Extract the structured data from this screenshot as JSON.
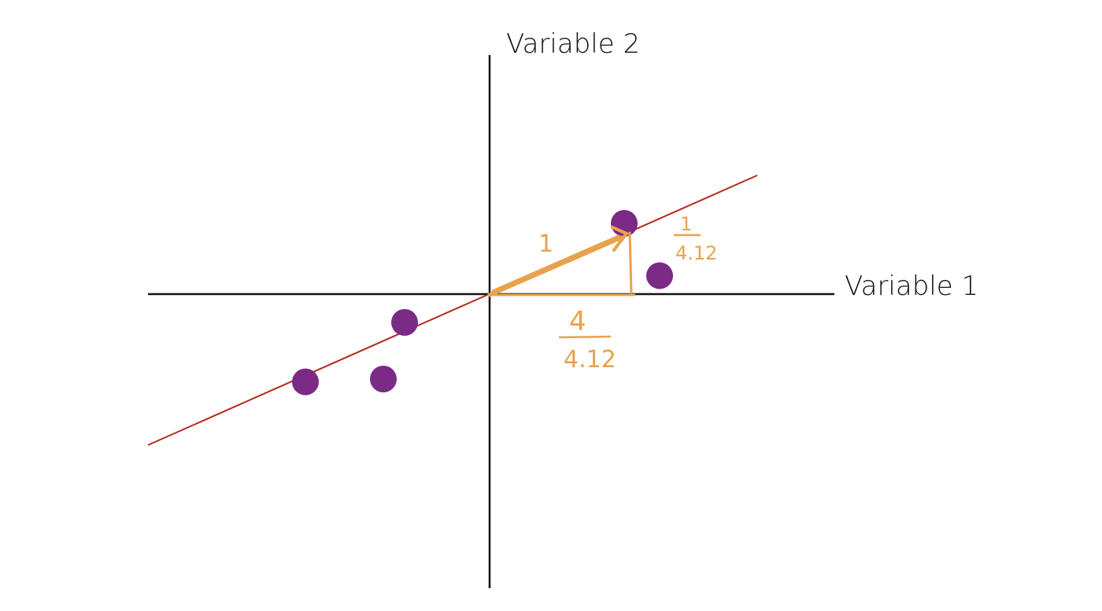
{
  "labels": {
    "y_axis": "Variable 2",
    "x_axis": "Variable 1",
    "vector_length": "1",
    "x_numerator": "4",
    "x_denominator": "4.12",
    "y_numerator": "1",
    "y_denominator": "4.12"
  },
  "colors": {
    "axis": "#111111",
    "regression_line": "#b22a1c",
    "points": "#7b2a86",
    "annotation": "#e8a24d"
  },
  "chart_data": {
    "type": "scatter",
    "points": [
      {
        "x": 0.95,
        "y": 0.5
      },
      {
        "x": 1.2,
        "y": 0.13
      },
      {
        "x": -0.6,
        "y": -0.2
      },
      {
        "x": -1.3,
        "y": -0.62
      },
      {
        "x": -0.75,
        "y": -0.6
      }
    ],
    "fit_line": {
      "slope": 0.25
    },
    "unit_vector": {
      "dx": 4,
      "dy": 1,
      "length": 4.12
    }
  }
}
